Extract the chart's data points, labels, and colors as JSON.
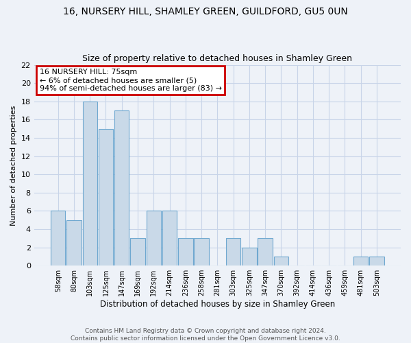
{
  "title1": "16, NURSERY HILL, SHAMLEY GREEN, GUILDFORD, GU5 0UN",
  "title2": "Size of property relative to detached houses in Shamley Green",
  "xlabel": "Distribution of detached houses by size in Shamley Green",
  "ylabel": "Number of detached properties",
  "categories": [
    "58sqm",
    "80sqm",
    "103sqm",
    "125sqm",
    "147sqm",
    "169sqm",
    "192sqm",
    "214sqm",
    "236sqm",
    "258sqm",
    "281sqm",
    "303sqm",
    "325sqm",
    "347sqm",
    "370sqm",
    "392sqm",
    "414sqm",
    "436sqm",
    "459sqm",
    "481sqm",
    "503sqm"
  ],
  "values": [
    6,
    5,
    18,
    15,
    17,
    3,
    6,
    6,
    3,
    3,
    0,
    3,
    2,
    3,
    1,
    0,
    0,
    0,
    0,
    1,
    1
  ],
  "bar_color": "#c9d9e8",
  "bar_edgecolor": "#6fa8d0",
  "annotation_text": "16 NURSERY HILL: 75sqm\n← 6% of detached houses are smaller (5)\n94% of semi-detached houses are larger (83) →",
  "annotation_box_color": "#ffffff",
  "annotation_box_edgecolor": "#cc0000",
  "ylim": [
    0,
    22
  ],
  "yticks": [
    0,
    2,
    4,
    6,
    8,
    10,
    12,
    14,
    16,
    18,
    20,
    22
  ],
  "footnote": "Contains HM Land Registry data © Crown copyright and database right 2024.\nContains public sector information licensed under the Open Government Licence v3.0.",
  "bg_color": "#eef2f8",
  "grid_color": "#c8d4e8"
}
